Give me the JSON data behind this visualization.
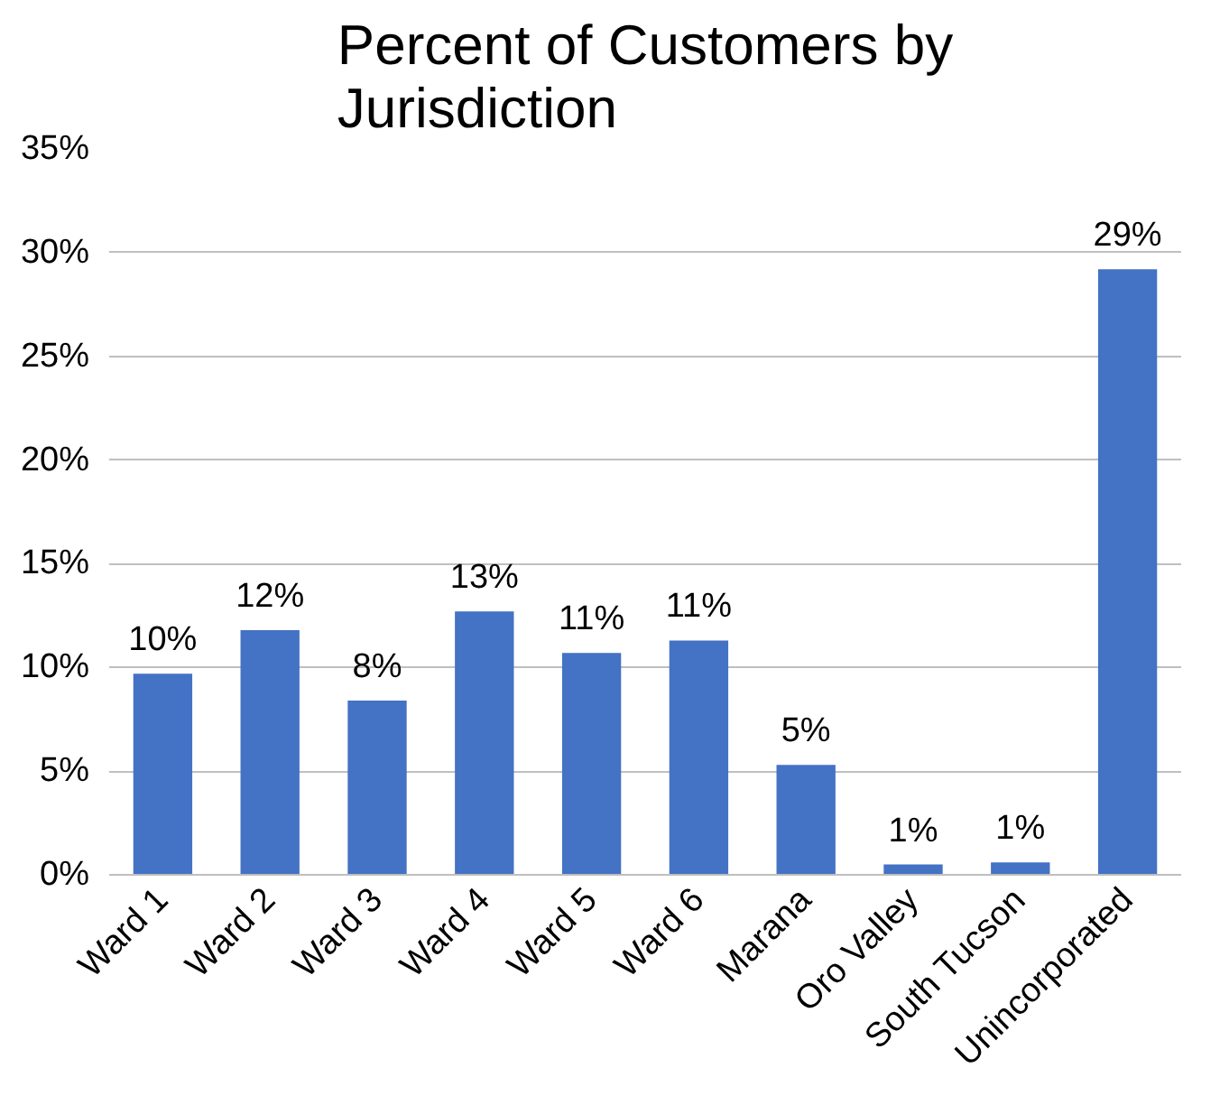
{
  "chart_data": {
    "type": "bar",
    "title": "Percent of Customers by Jurisdiction",
    "categories": [
      "Ward 1",
      "Ward 2",
      "Ward 3",
      "Ward 4",
      "Ward 5",
      "Ward 6",
      "Marana",
      "Oro Valley",
      "South Tucson",
      "Unincorporated"
    ],
    "values": [
      9.7,
      11.8,
      8.4,
      12.7,
      10.7,
      11.3,
      5.3,
      0.5,
      0.6,
      29.2
    ],
    "value_labels": [
      "10%",
      "12%",
      "8%",
      "13%",
      "11%",
      "11%",
      "5%",
      "1%",
      "1%",
      "29%"
    ],
    "color": "#4472c4",
    "ylim": [
      0,
      35
    ],
    "yticks": [
      {
        "value": 0,
        "label": "0%"
      },
      {
        "value": 5,
        "label": "5%"
      },
      {
        "value": 10,
        "label": "10%"
      },
      {
        "value": 15,
        "label": "15%"
      },
      {
        "value": 20,
        "label": "20%"
      },
      {
        "value": 25,
        "label": "25%"
      },
      {
        "value": 30,
        "label": "30%"
      },
      {
        "value": 35,
        "label": "35%"
      }
    ],
    "grid": "y"
  }
}
